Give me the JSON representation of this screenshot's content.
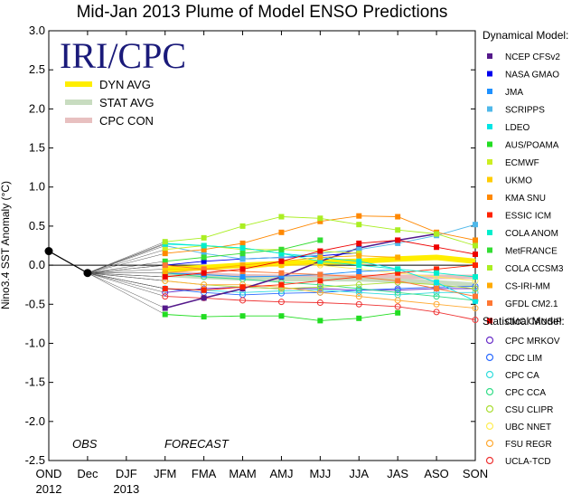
{
  "chart_data": {
    "type": "line",
    "title": "Mid-Jan 2013 Plume of Model ENSO Predictions",
    "watermark": "IRI/CPC",
    "ylabel": "Nino3.4 SST Anomaly (°C)",
    "ylim": [
      -2.5,
      3.0
    ],
    "yticks": [
      "3.0",
      "2.5",
      "2.0",
      "1.5",
      "1.0",
      "0.5",
      "0.0",
      "-0.5",
      "-1.0",
      "-1.5",
      "-2.0",
      "-2.5"
    ],
    "categories": [
      "OND",
      "Dec",
      "DJF",
      "JFM",
      "FMA",
      "MAM",
      "AMJ",
      "MJJ",
      "JJA",
      "JAS",
      "ASO",
      "SON"
    ],
    "year_labels": [
      {
        "label": "2012",
        "at": "OND"
      },
      {
        "label": "2013",
        "at": "DJF"
      }
    ],
    "phase_labels": {
      "obs": "OBS",
      "forecast": "FORECAST"
    },
    "observed": {
      "x": [
        "OND",
        "Dec"
      ],
      "values": [
        0.18,
        -0.1
      ]
    },
    "averages": [
      {
        "name": "DYN AVG",
        "color": "#ffee00",
        "values": [
          -0.05,
          -0.03,
          0.0,
          0.02,
          0.04,
          0.05,
          0.08,
          0.1,
          0.05
        ]
      },
      {
        "name": "STAT AVG",
        "color": "#c8dcc0",
        "values": [
          -0.12,
          -0.15,
          -0.17,
          -0.18,
          -0.18,
          -0.18,
          -0.2,
          -0.22,
          -0.25
        ]
      },
      {
        "name": "CPC CON",
        "color": "#e8c0c0",
        "values": [
          -0.1,
          -0.12,
          -0.14,
          -0.15,
          -0.15,
          -0.15,
          -0.15,
          -0.15,
          -0.15
        ]
      }
    ],
    "dynamical_heading": "Dynamical Model:",
    "dynamical": [
      {
        "name": "NCEP CFSv2",
        "color": "#551a8b",
        "values": [
          -0.55,
          -0.42,
          -0.3,
          -0.15,
          0.05,
          0.22,
          0.32,
          0.4,
          null
        ]
      },
      {
        "name": "NASA GMAO",
        "color": "#0000ee",
        "values": [
          0.0,
          0.05,
          0.08,
          0.1,
          0.12,
          0.16,
          null,
          null,
          null
        ]
      },
      {
        "name": "JMA",
        "color": "#1e90ff",
        "values": [
          -0.1,
          -0.12,
          -0.15,
          -0.14,
          -0.12,
          -0.08,
          -0.06,
          null,
          null
        ]
      },
      {
        "name": "SCRIPPS",
        "color": "#4fb8ea",
        "values": [
          0.25,
          0.15,
          0.08,
          0.1,
          0.15,
          0.2,
          0.28,
          0.38,
          0.52
        ]
      },
      {
        "name": "LDEO",
        "color": "#00e5e5",
        "values": [
          0.27,
          0.25,
          0.22,
          0.15,
          0.1,
          0.05,
          -0.05,
          -0.22,
          -0.46
        ]
      },
      {
        "name": "AUS/POAMA",
        "color": "#22dd22",
        "values": [
          -0.63,
          -0.66,
          -0.65,
          -0.65,
          -0.71,
          -0.68,
          -0.61,
          null,
          null
        ]
      },
      {
        "name": "ECMWF",
        "color": "#ccee22",
        "values": [
          0.2,
          0.25,
          0.2,
          0.2,
          0.18,
          0.15,
          null,
          null,
          null
        ]
      },
      {
        "name": "UKMO",
        "color": "#ffcc00",
        "values": [
          -0.05,
          -0.05,
          -0.02,
          0.0,
          0.02,
          null,
          null,
          null,
          null
        ]
      },
      {
        "name": "KMA SNU",
        "color": "#ff8800",
        "values": [
          0.15,
          0.2,
          0.28,
          0.42,
          0.56,
          0.63,
          0.62,
          0.42,
          0.32
        ]
      },
      {
        "name": "ESSIC ICM",
        "color": "#ff2200",
        "values": [
          -0.3,
          -0.32,
          -0.28,
          -0.25,
          -0.2,
          -0.15,
          -0.1,
          -0.05,
          0.0
        ]
      },
      {
        "name": "COLA ANOM",
        "color": "#00eecc",
        "values": [
          0.28,
          0.25,
          0.22,
          0.15,
          0.05,
          0.0,
          -0.05,
          -0.1,
          -0.15
        ]
      },
      {
        "name": "MetFRANCE",
        "color": "#33dd33",
        "values": [
          0.05,
          0.1,
          0.15,
          0.2,
          0.32,
          null,
          null,
          null,
          null
        ]
      },
      {
        "name": "COLA CCSM3",
        "color": "#aaee22",
        "values": [
          0.3,
          0.35,
          0.5,
          0.62,
          0.6,
          0.52,
          0.45,
          0.4,
          0.25
        ]
      },
      {
        "name": "CS-IRI-MM",
        "color": "#ffaa00",
        "values": [
          -0.1,
          -0.05,
          0.0,
          0.05,
          0.1,
          0.12,
          0.1,
          null,
          null
        ]
      },
      {
        "name": "GFDL CM2.1",
        "color": "#ff7733",
        "values": [
          0.0,
          -0.05,
          -0.08,
          -0.1,
          -0.12,
          -0.15,
          -0.2,
          -0.3,
          -0.4
        ]
      },
      {
        "name": "CMC CANSIP",
        "color": "#ee0000",
        "values": [
          -0.15,
          -0.1,
          -0.05,
          0.05,
          0.18,
          0.28,
          0.32,
          0.23,
          0.14
        ]
      }
    ],
    "statistical_heading": "Statistical Model:",
    "statistical": [
      {
        "name": "CPC MRKOV",
        "color": "#6a2ec8",
        "values": [
          -0.35,
          -0.3,
          -0.28,
          -0.3,
          -0.3,
          -0.32,
          -0.32,
          -0.3,
          -0.3
        ]
      },
      {
        "name": "CDC LIM",
        "color": "#2b6bff",
        "values": [
          -0.3,
          -0.35,
          -0.38,
          -0.36,
          -0.35,
          -0.32,
          -0.3,
          -0.28,
          -0.27
        ]
      },
      {
        "name": "CPC CA",
        "color": "#33dddd",
        "values": [
          -0.3,
          -0.32,
          -0.35,
          -0.33,
          -0.32,
          -0.35,
          -0.38,
          -0.35,
          -0.35
        ]
      },
      {
        "name": "CPC CCA",
        "color": "#33dd88",
        "values": [
          -0.1,
          -0.15,
          -0.18,
          -0.22,
          -0.25,
          -0.3,
          -0.35,
          -0.4,
          -0.45
        ]
      },
      {
        "name": "CSU CLIPR",
        "color": "#aadd33",
        "values": [
          -0.2,
          -0.25,
          -0.28,
          -0.3,
          -0.28,
          -0.25,
          -0.22,
          -0.25,
          -0.3
        ]
      },
      {
        "name": "UBC NNET",
        "color": "#ffee55",
        "values": [
          -0.15,
          -0.1,
          -0.05,
          0.0,
          0.0,
          -0.05,
          -0.1,
          -0.15,
          -0.2
        ]
      },
      {
        "name": "FSU REGR",
        "color": "#ffaa33",
        "values": [
          -0.2,
          -0.25,
          -0.25,
          -0.28,
          -0.35,
          -0.4,
          -0.45,
          -0.5,
          -0.55
        ]
      },
      {
        "name": "UCLA-TCD",
        "color": "#ee3333",
        "values": [
          -0.4,
          -0.42,
          -0.45,
          -0.47,
          -0.48,
          -0.5,
          -0.53,
          -0.6,
          -0.7
        ]
      }
    ]
  }
}
